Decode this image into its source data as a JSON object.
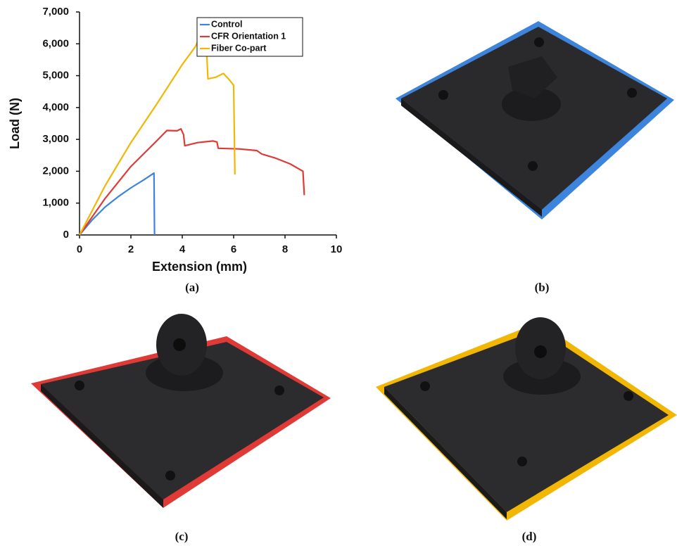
{
  "chart_data": {
    "type": "line",
    "xlabel": "Extension (mm)",
    "ylabel": "Load (N)",
    "xlim": [
      0,
      10
    ],
    "xticks": [
      0,
      2,
      4,
      6,
      8,
      10
    ],
    "ylim": [
      0,
      7000
    ],
    "yticks": [
      0,
      {
        "value": 1000,
        "label": "1,000"
      },
      {
        "value": 2000,
        "label": "2,000"
      },
      {
        "value": 3000,
        "label": "3,000"
      },
      {
        "value": 4000,
        "label": "4,000"
      },
      {
        "value": 5000,
        "label": "5,000"
      },
      {
        "value": 6000,
        "label": "6,000"
      },
      {
        "value": 7000,
        "label": "7,000"
      }
    ],
    "legend": "top-right",
    "series": [
      {
        "name": "Control",
        "color": "#3d84dc",
        "x": [
          0,
          0.5,
          1,
          1.5,
          2,
          2.5,
          2.9,
          2.92
        ],
        "values": [
          0,
          480,
          880,
          1200,
          1480,
          1730,
          1940,
          0
        ]
      },
      {
        "name": "CFR Orientation 1",
        "color": "#e03a36",
        "x": [
          0,
          1,
          2,
          3,
          3.4,
          3.8,
          3.95,
          4.05,
          4.1,
          4.6,
          5.2,
          5.35,
          5.4,
          6.2,
          6.9,
          7.1,
          7.6,
          8.2,
          8.7,
          8.75
        ],
        "values": [
          0,
          1150,
          2150,
          2950,
          3280,
          3270,
          3330,
          3150,
          2800,
          2900,
          2950,
          2920,
          2720,
          2700,
          2650,
          2540,
          2420,
          2230,
          2000,
          1250
        ]
      },
      {
        "name": "Fiber Co-part",
        "color": "#f2b705",
        "x": [
          0,
          1,
          2,
          3,
          4,
          4.5,
          4.65,
          4.8,
          4.95,
          5.0,
          5.3,
          5.6,
          5.8,
          6.0,
          6.05
        ],
        "values": [
          0,
          1550,
          2900,
          4100,
          5350,
          5900,
          6150,
          6080,
          5700,
          4900,
          4950,
          5070,
          4900,
          4700,
          1900
        ]
      }
    ]
  },
  "captions": [
    "(a)",
    "(b)",
    "(c)",
    "(d)"
  ]
}
